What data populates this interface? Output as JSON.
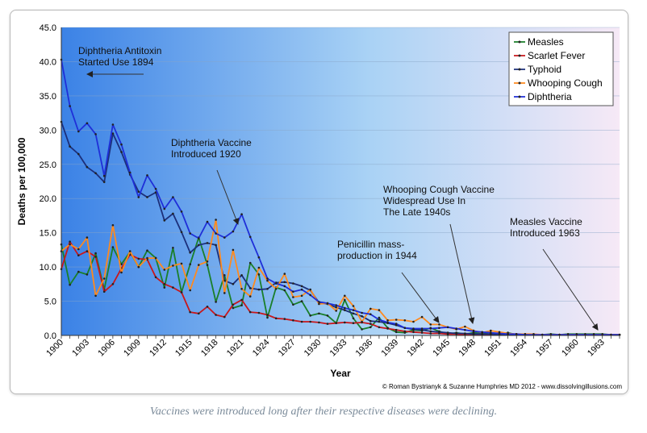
{
  "caption": "Vaccines were introduced long after their respective diseases were declining.",
  "colors": {
    "bg_left": "#3b82e6",
    "bg_mid": "#a9d2f5",
    "bg_right": "#f6e9f6",
    "measles": "#1a7f2a",
    "scarlet_fever": "#c8171b",
    "typhoid": "#1c2f7a",
    "whooping_cough": "#ff8a1e",
    "diphtheria": "#1f2fd8"
  },
  "chart_data": {
    "type": "line",
    "title": "",
    "xlabel": "Year",
    "ylabel": "Deaths per 100,000",
    "xlim": [
      1900,
      1965
    ],
    "ylim": [
      0,
      45
    ],
    "grid": true,
    "legend_position": "top-right",
    "y_ticks": [
      "0.0",
      "5.0",
      "10.0",
      "15.0",
      "20.0",
      "25.0",
      "30.0",
      "35.0",
      "40.0",
      "45.0"
    ],
    "x_ticks": [
      "1900",
      "1903",
      "1906",
      "1909",
      "1912",
      "1915",
      "1918",
      "1921",
      "1924",
      "1927",
      "1930",
      "1933",
      "1936",
      "1939",
      "1942",
      "1945",
      "1948",
      "1951",
      "1954",
      "1957",
      "1960",
      "1963"
    ],
    "x": [
      1900,
      1901,
      1902,
      1903,
      1904,
      1905,
      1906,
      1907,
      1908,
      1909,
      1910,
      1911,
      1912,
      1913,
      1914,
      1915,
      1916,
      1917,
      1918,
      1919,
      1920,
      1921,
      1922,
      1923,
      1924,
      1925,
      1926,
      1927,
      1928,
      1929,
      1930,
      1931,
      1932,
      1933,
      1934,
      1935,
      1936,
      1937,
      1938,
      1939,
      1940,
      1941,
      1942,
      1943,
      1944,
      1945,
      1946,
      1947,
      1948,
      1949,
      1950,
      1951,
      1952,
      1953,
      1954,
      1955,
      1956,
      1957,
      1958,
      1959,
      1960,
      1961,
      1962,
      1963,
      1964,
      1965
    ],
    "series": [
      {
        "name": "Measles",
        "color": "#1a7f2a",
        "values": [
          13.3,
          7.4,
          9.3,
          8.9,
          12.0,
          6.7,
          12.9,
          10.4,
          12.2,
          10.0,
          12.4,
          11.3,
          7.0,
          12.8,
          6.3,
          10.4,
          14.3,
          10.3,
          4.9,
          8.8,
          4.0,
          4.4,
          10.6,
          8.9,
          2.6,
          7.0,
          6.6,
          4.5,
          5.0,
          2.9,
          3.2,
          2.9,
          1.8,
          5.2,
          2.5,
          0.9,
          1.2,
          2.6,
          1.1,
          0.5,
          0.4,
          0.8,
          0.7,
          1.1,
          0.6,
          0.2,
          0.4,
          0.2,
          0.4,
          0.3,
          0.2,
          0.2,
          0.4,
          0.1,
          0.2,
          0.1,
          0.1,
          0.2,
          0.1,
          0.2,
          0.2,
          0.2,
          0.2,
          0.2,
          0.1,
          0.1
        ]
      },
      {
        "name": "Scarlet Fever",
        "color": "#c8171b",
        "values": [
          9.7,
          13.7,
          11.7,
          12.3,
          11.5,
          6.4,
          7.5,
          9.8,
          11.8,
          11.2,
          11.1,
          8.5,
          7.5,
          7.0,
          6.3,
          3.4,
          3.2,
          4.2,
          3.0,
          2.7,
          4.5,
          5.2,
          3.4,
          3.3,
          3.0,
          2.5,
          2.4,
          2.2,
          2.0,
          2.0,
          1.9,
          1.7,
          1.8,
          1.9,
          1.8,
          1.9,
          1.7,
          1.2,
          1.0,
          0.8,
          0.6,
          0.5,
          0.4,
          0.3,
          0.3,
          0.2,
          0.2,
          0.1,
          0.1,
          0.1,
          0.1,
          0.1,
          0.1,
          0.1,
          0.1,
          0.1,
          0.1,
          0.1,
          0.1,
          0.1,
          0.1,
          0.1,
          0.1,
          0.1,
          0.1,
          0.1
        ]
      },
      {
        "name": "Typhoid",
        "color": "#1c2f7a",
        "values": [
          31.2,
          27.6,
          26.5,
          24.6,
          23.7,
          22.4,
          29.5,
          26.8,
          23.5,
          21.0,
          20.2,
          20.9,
          16.8,
          17.8,
          15.1,
          12.1,
          13.2,
          13.5,
          13.2,
          8.0,
          7.5,
          8.8,
          6.9,
          6.7,
          6.8,
          7.7,
          7.8,
          7.6,
          7.2,
          6.6,
          4.8,
          4.6,
          4.1,
          3.7,
          3.2,
          2.8,
          2.1,
          2.0,
          1.8,
          1.5,
          1.1,
          0.9,
          0.8,
          0.6,
          0.5,
          0.4,
          0.3,
          0.3,
          0.2,
          0.2,
          0.2,
          0.1,
          0.1,
          0.1,
          0.1,
          0.1,
          0.1,
          0.1,
          0.1,
          0.1,
          0.1,
          0.1,
          0.1,
          0.1,
          0.1,
          0.1
        ]
      },
      {
        "name": "Whooping Cough",
        "color": "#ff8a1e",
        "values": [
          12.3,
          13.3,
          12.6,
          14.3,
          5.8,
          8.3,
          16.1,
          9.2,
          12.3,
          10.0,
          11.3,
          11.3,
          9.6,
          10.2,
          10.5,
          6.6,
          10.3,
          10.8,
          16.9,
          6.2,
          12.5,
          6.8,
          5.7,
          9.9,
          8.0,
          6.8,
          9.0,
          5.6,
          5.8,
          6.7,
          4.6,
          4.7,
          3.6,
          5.8,
          4.3,
          2.0,
          3.9,
          3.7,
          2.2,
          2.3,
          2.2,
          2.0,
          2.7,
          1.6,
          1.6,
          1.2,
          0.9,
          1.3,
          0.7,
          0.4,
          0.7,
          0.5,
          0.3,
          0.2,
          0.2,
          0.2,
          0.1,
          0.1,
          0.1,
          0.1,
          0.1,
          0.1,
          0.1,
          0.1,
          0.1,
          0.1
        ]
      },
      {
        "name": "Diphtheria",
        "color": "#1f2fd8",
        "values": [
          40.3,
          33.5,
          29.8,
          31.0,
          29.4,
          23.3,
          30.8,
          27.9,
          23.8,
          20.2,
          23.4,
          21.4,
          18.5,
          20.2,
          18.1,
          14.9,
          14.2,
          16.6,
          14.9,
          14.3,
          15.2,
          17.7,
          14.4,
          11.4,
          8.3,
          7.6,
          7.2,
          6.4,
          6.7,
          5.9,
          4.9,
          4.7,
          4.4,
          4.0,
          3.7,
          3.3,
          3.1,
          2.3,
          1.9,
          1.7,
          1.1,
          1.0,
          1.0,
          1.0,
          1.1,
          1.2,
          1.0,
          0.8,
          0.6,
          0.5,
          0.4,
          0.3,
          0.2,
          0.2,
          0.1,
          0.1,
          0.1,
          0.1,
          0.1,
          0.1,
          0.1,
          0.1,
          0.1,
          0.1,
          0.1,
          0.1
        ]
      }
    ],
    "annotations": [
      {
        "lines": [
          "Diphtheria Antitoxin",
          "Started Use 1894"
        ]
      },
      {
        "lines": [
          "Diphtheria Vaccine",
          "Introduced 1920"
        ]
      },
      {
        "lines": [
          "Penicillin mass-",
          "production in 1944"
        ]
      },
      {
        "lines": [
          "Whooping Cough Vaccine",
          "Widespread Use In",
          "The Late 1940s"
        ]
      },
      {
        "lines": [
          "Measles Vaccine",
          "Introduced 1963"
        ]
      }
    ],
    "credit": "© Roman Bystrianyk & Suzanne Humphries MD 2012 - www.dissolvingillusions.com"
  }
}
